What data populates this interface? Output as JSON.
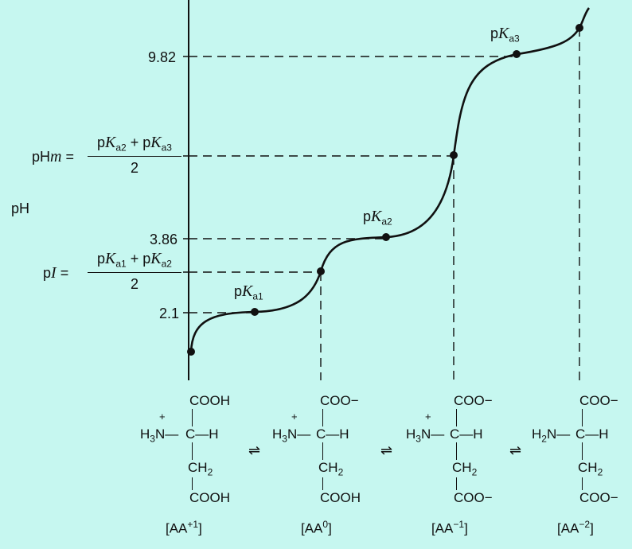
{
  "y_axis_label": "pH",
  "ticks": {
    "pka3_value": "9.82",
    "pka2_value": "3.86",
    "pka1_value": "2.1"
  },
  "pHm": {
    "lhs_main": "pH",
    "lhs_sub": "m",
    "eq": "=",
    "num_a": "p",
    "num_a_k": "K",
    "num_a_sub": "a2",
    "plus": "+",
    "num_b": "p",
    "num_b_k": "K",
    "num_b_sub": "a3",
    "den": "2"
  },
  "pI": {
    "lhs_main": "p",
    "lhs_i": "I",
    "eq": "=",
    "num_a": "p",
    "num_a_k": "K",
    "num_a_sub": "a1",
    "plus": "+",
    "num_b": "p",
    "num_b_k": "K",
    "num_b_sub": "a2",
    "den": "2"
  },
  "point_labels": {
    "pka1": {
      "p": "p",
      "k": "K",
      "sub": "a1"
    },
    "pka2": {
      "p": "p",
      "k": "K",
      "sub": "a2"
    },
    "pka3": {
      "p": "p",
      "k": "K",
      "sub": "a3"
    }
  },
  "structures": [
    {
      "top": "COOH",
      "left_group": "H3N",
      "plus": "+",
      "ch": "C—H",
      "ch2": "CH2",
      "bottom": "COOH",
      "species": "[AA+1]"
    },
    {
      "top": "COO−",
      "left_group": "H3N",
      "plus": "+",
      "ch": "C—H",
      "ch2": "CH2",
      "bottom": "COOH",
      "species": "[AA0]"
    },
    {
      "top": "COO−",
      "left_group": "H3N",
      "plus": "+",
      "ch": "C—H",
      "ch2": "CH2",
      "bottom": "COO−",
      "species": "[AA−1]"
    },
    {
      "top": "COO−",
      "left_group": "H2N",
      "plus": "",
      "ch": "C—H",
      "ch2": "CH2",
      "bottom": "COO−",
      "species": "[AA−2]"
    }
  ],
  "equilibrium_symbol": "⇌",
  "chart_data": {
    "type": "line",
    "ylabel": "pH",
    "y_ticks": [
      "2.1",
      "3.86",
      "9.82"
    ],
    "marked_points": [
      "pKa1",
      "pI",
      "pKa2",
      "pHm",
      "pKa3"
    ],
    "species": [
      "[AA+1]",
      "[AA0]",
      "[AA−1]",
      "[AA−2]"
    ]
  }
}
